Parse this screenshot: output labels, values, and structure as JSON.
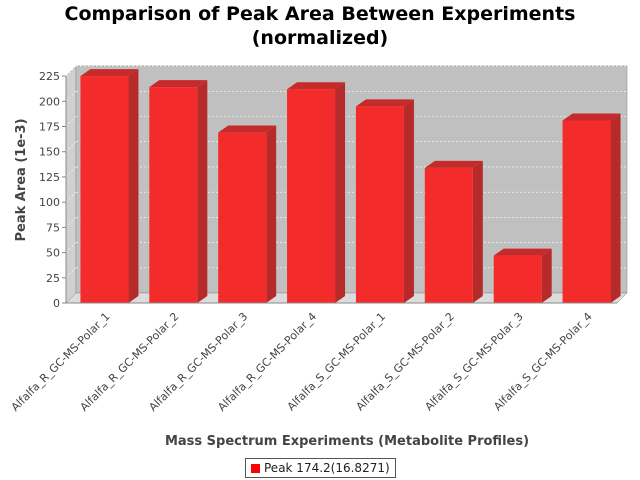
{
  "chart_data": {
    "type": "bar",
    "title": "Comparison of Peak Area Between Experiments (normalized)",
    "xlabel": "Mass Spectrum Experiments (Metabolite Profiles)",
    "ylabel": "Peak Area (1e-3)",
    "ylim": [
      0,
      235
    ],
    "yticks": [
      0,
      25,
      50,
      75,
      100,
      125,
      150,
      175,
      200,
      225
    ],
    "grid": true,
    "legend_position": "bottom",
    "categories": [
      "Alfalfa_R_GC-MS-Polar_1",
      "Alfalfa_R_GC-MS-Polar_2",
      "Alfalfa_R_GC-MS-Polar_3",
      "Alfalfa_R_GC-MS-Polar_4",
      "Alfalfa_S_GC-MS-Polar_1",
      "Alfalfa_S_GC-MS-Polar_2",
      "Alfalfa_S_GC-MS-Polar_3",
      "Alfalfa_S_GC-MS-Polar_4"
    ],
    "series": [
      {
        "name": "Peak 174.2(16.8271)",
        "color": "#ff0000",
        "values": [
          225,
          214,
          169,
          212,
          195,
          134,
          47,
          181
        ]
      }
    ]
  }
}
